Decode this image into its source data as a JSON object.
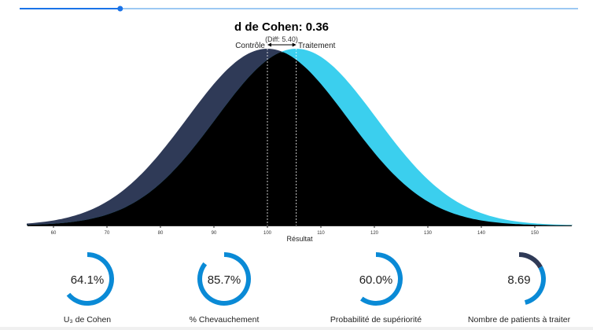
{
  "slider": {
    "value_fraction": 0.18
  },
  "chart_data": {
    "type": "area",
    "title": "d de Cohen: 0.36",
    "diff_label": "(Diff: 5.40)",
    "xlabel": "Résultat",
    "xlim": [
      55,
      157
    ],
    "xticks": [
      "60",
      "70",
      "80",
      "90",
      "100",
      "110",
      "120",
      "130",
      "140",
      "150"
    ],
    "series": [
      {
        "name": "Contrôle",
        "mean": 100,
        "sd": 15,
        "color": "#2f3a57"
      },
      {
        "name": "Traitement",
        "mean": 105.4,
        "sd": 15,
        "color": "#3bcfee"
      }
    ],
    "overlap_color": "#000000"
  },
  "gauges": [
    {
      "value": "64.1%",
      "fraction": 0.641,
      "label": "U₃ de Cohen"
    },
    {
      "value": "85.7%",
      "fraction": 0.857,
      "label": "% Chevauchement"
    },
    {
      "value": "60.0%",
      "fraction": 0.6,
      "label": "Probabilité de supériorité"
    },
    {
      "value": "8.69",
      "fraction": 0.115,
      "label": "Nombre de patients à traiter"
    }
  ],
  "colors": {
    "accent": "#0a8ad6",
    "slider": "#1a73e8",
    "dark": "#2f3a57"
  }
}
